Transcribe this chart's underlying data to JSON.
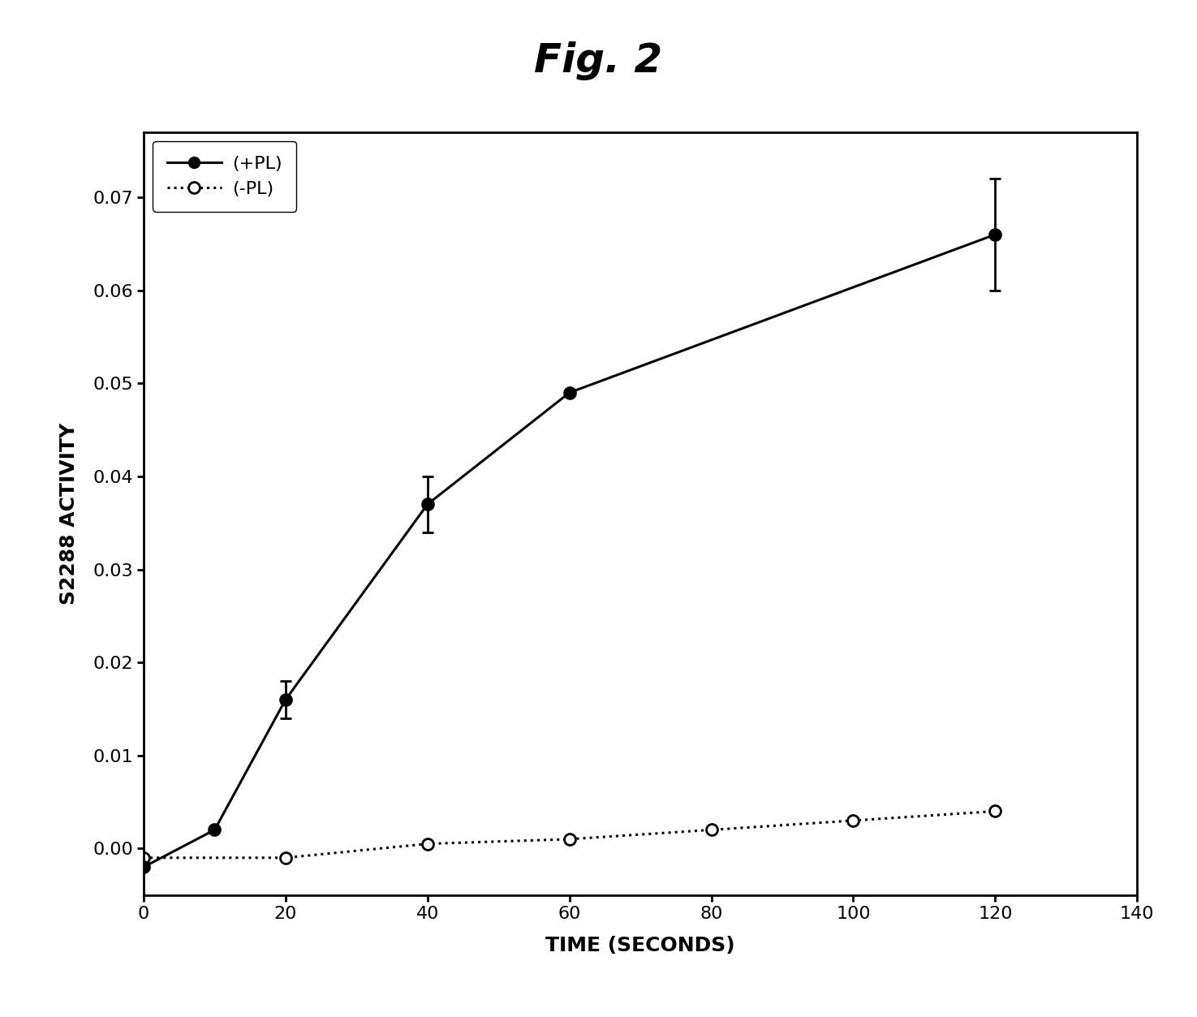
{
  "title": "Fig. 2",
  "xlabel": "TIME (SECONDS)",
  "ylabel": "S2288 ACTIVITY",
  "xlim": [
    0,
    140
  ],
  "ylim": [
    -0.005,
    0.077
  ],
  "yticks": [
    0,
    0.01,
    0.02,
    0.03,
    0.04,
    0.05,
    0.06,
    0.07
  ],
  "xticks": [
    0,
    20,
    40,
    60,
    80,
    100,
    120,
    140
  ],
  "pl_plus_x": [
    0,
    10,
    20,
    40,
    60,
    120
  ],
  "pl_plus_y": [
    -0.002,
    0.002,
    0.016,
    0.037,
    0.049,
    0.066
  ],
  "pl_plus_yerr": [
    0,
    0,
    0.002,
    0.003,
    0,
    0.006
  ],
  "pl_minus_x": [
    0,
    20,
    40,
    60,
    80,
    100,
    120
  ],
  "pl_minus_y": [
    -0.001,
    -0.001,
    0.0005,
    0.001,
    0.002,
    0.003,
    0.004
  ],
  "legend_plus_label": "(+PL)",
  "legend_minus_label": "(-PL)",
  "line_color": "#000000",
  "bg_color": "#ffffff",
  "title_fontsize": 36,
  "label_fontsize": 18,
  "tick_fontsize": 16,
  "legend_fontsize": 16
}
